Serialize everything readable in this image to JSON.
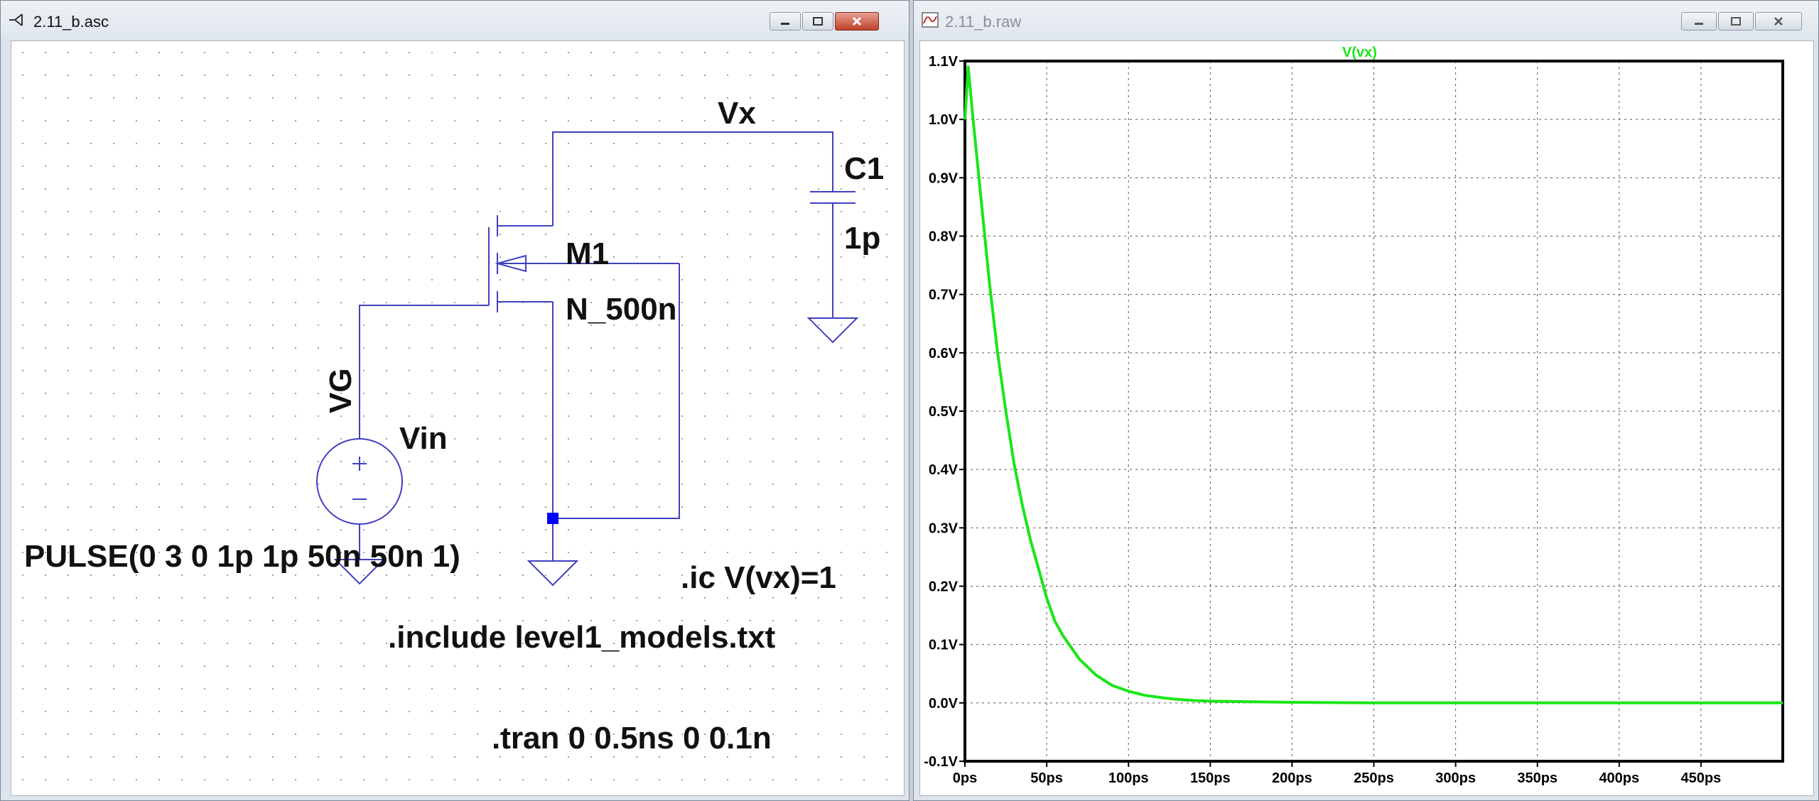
{
  "schematic_window": {
    "title": "2.11_b.asc",
    "labels": {
      "vx_net": "Vx",
      "c1_name": "C1",
      "c1_value": "1p",
      "m1_name": "M1",
      "m1_model": "N_500n",
      "vg_net": "VG",
      "vin_name": "Vin",
      "vin_value": "PULSE(0 3 0 1p 1p 50n 50n 1)",
      "ic_directive": ".ic V(vx)=1",
      "include_directive": ".include level1_models.txt",
      "tran_directive": ".tran 0 0.5ns 0 0.1n"
    }
  },
  "waveform_window": {
    "title": "2.11_b.raw"
  },
  "colors": {
    "wire": "#4040c0",
    "trace": "#19e619",
    "grid_dot": "#9aa0a8",
    "junction": "#0000ff"
  },
  "chart_data": {
    "type": "line",
    "title": "",
    "xlabel": "",
    "ylabel": "",
    "xlim": [
      0,
      500
    ],
    "ylim": [
      -0.1,
      1.1
    ],
    "x_ticks": [
      "0ps",
      "50ps",
      "100ps",
      "150ps",
      "200ps",
      "250ps",
      "300ps",
      "350ps",
      "400ps",
      "450ps"
    ],
    "x_tick_values": [
      0,
      50,
      100,
      150,
      200,
      250,
      300,
      350,
      400,
      450
    ],
    "y_ticks": [
      "1.1V",
      "1.0V",
      "0.9V",
      "0.8V",
      "0.7V",
      "0.6V",
      "0.5V",
      "0.4V",
      "0.3V",
      "0.2V",
      "0.1V",
      "0.0V",
      "-0.1V"
    ],
    "y_tick_values": [
      1.1,
      1.0,
      0.9,
      0.8,
      0.7,
      0.6,
      0.5,
      0.4,
      0.3,
      0.2,
      0.1,
      0.0,
      -0.1
    ],
    "grid": true,
    "series": [
      {
        "name": "V(vx)",
        "x": [
          0,
          2,
          5,
          10,
          15,
          20,
          25,
          30,
          35,
          40,
          45,
          50,
          55,
          60,
          70,
          80,
          90,
          100,
          110,
          120,
          130,
          140,
          150,
          175,
          200,
          250,
          300,
          350,
          400,
          450,
          500
        ],
        "y": [
          1.0,
          1.09,
          1.0,
          0.86,
          0.72,
          0.6,
          0.5,
          0.41,
          0.34,
          0.28,
          0.23,
          0.18,
          0.14,
          0.115,
          0.075,
          0.048,
          0.03,
          0.02,
          0.013,
          0.009,
          0.006,
          0.004,
          0.003,
          0.002,
          0.001,
          0.0,
          0.0,
          0.0,
          0.0,
          0.0,
          0.0
        ]
      }
    ]
  }
}
